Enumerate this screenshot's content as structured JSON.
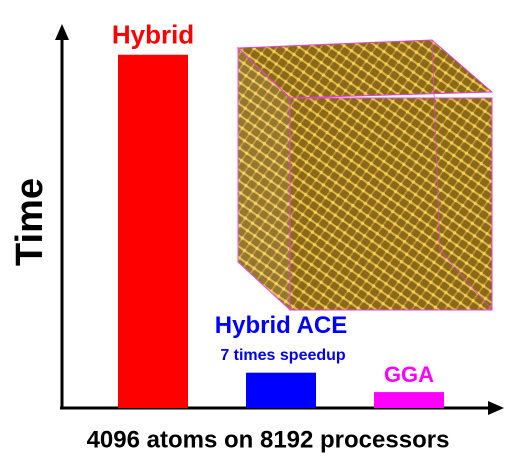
{
  "chart_data": {
    "type": "bar",
    "categories": [
      "Hybrid",
      "Hybrid ACE",
      "GGA"
    ],
    "values": [
      100,
      10,
      4.5
    ],
    "colors": [
      "#ff0000",
      "#0000ff",
      "#ff00ff"
    ],
    "ylim": [
      0,
      107
    ],
    "y_label": "Time",
    "x_label": "4096 atoms on 8192 processors",
    "annotation": "7 times speedup"
  }
}
